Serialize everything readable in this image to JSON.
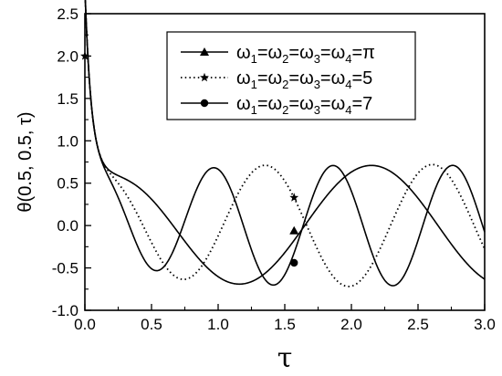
{
  "chart_data": {
    "type": "line",
    "title": "",
    "xlabel": "τ",
    "ylabel": "θ(0.5, 0.5, τ)",
    "xlim": [
      0,
      3.0
    ],
    "ylim": [
      -1.0,
      2.5
    ],
    "xticks": [
      "0.0",
      "0.5",
      "1.0",
      "1.5",
      "2.0",
      "2.5",
      "3.0"
    ],
    "yticks": [
      "-1.0",
      "-0.5",
      "0.0",
      "0.5",
      "1.0",
      "1.5",
      "2.0",
      "2.5"
    ],
    "grid": false,
    "legend_position": "top-right",
    "series": [
      {
        "legend_parts": [
          "ω",
          "1",
          "=ω",
          "2",
          "=ω",
          "3",
          "=ω",
          "4",
          "=π"
        ],
        "omega": 3.1416,
        "line_style": "solid",
        "marker": "triangle",
        "marker_points": [
          [
            1.57,
            -0.06
          ]
        ],
        "peaks": [
          0.71,
          0.72
        ],
        "troughs": [
          -0.72,
          -0.7
        ],
        "end_value": -0.7
      },
      {
        "legend_parts": [
          "ω",
          "1",
          "=ω",
          "2",
          "=ω",
          "3",
          "=ω",
          "4",
          "=5"
        ],
        "omega": 5,
        "line_style": "dotted",
        "marker": "star",
        "marker_points": [
          [
            0.0,
            2.0
          ],
          [
            1.57,
            0.33
          ]
        ],
        "peaks": [
          0.72,
          0.72
        ],
        "troughs": [
          -0.73,
          -0.73
        ],
        "end_value": -0.02
      },
      {
        "legend_parts": [
          "ω",
          "1",
          "=ω",
          "2",
          "=ω",
          "3",
          "=ω",
          "4",
          "=7"
        ],
        "omega": 7,
        "line_style": "solid",
        "marker": "circle",
        "marker_points": [
          [
            1.57,
            -0.44
          ]
        ],
        "peaks": [
          0.71,
          0.71
        ],
        "troughs": [
          -0.71,
          -0.71
        ],
        "end_value": 0.05
      }
    ]
  }
}
